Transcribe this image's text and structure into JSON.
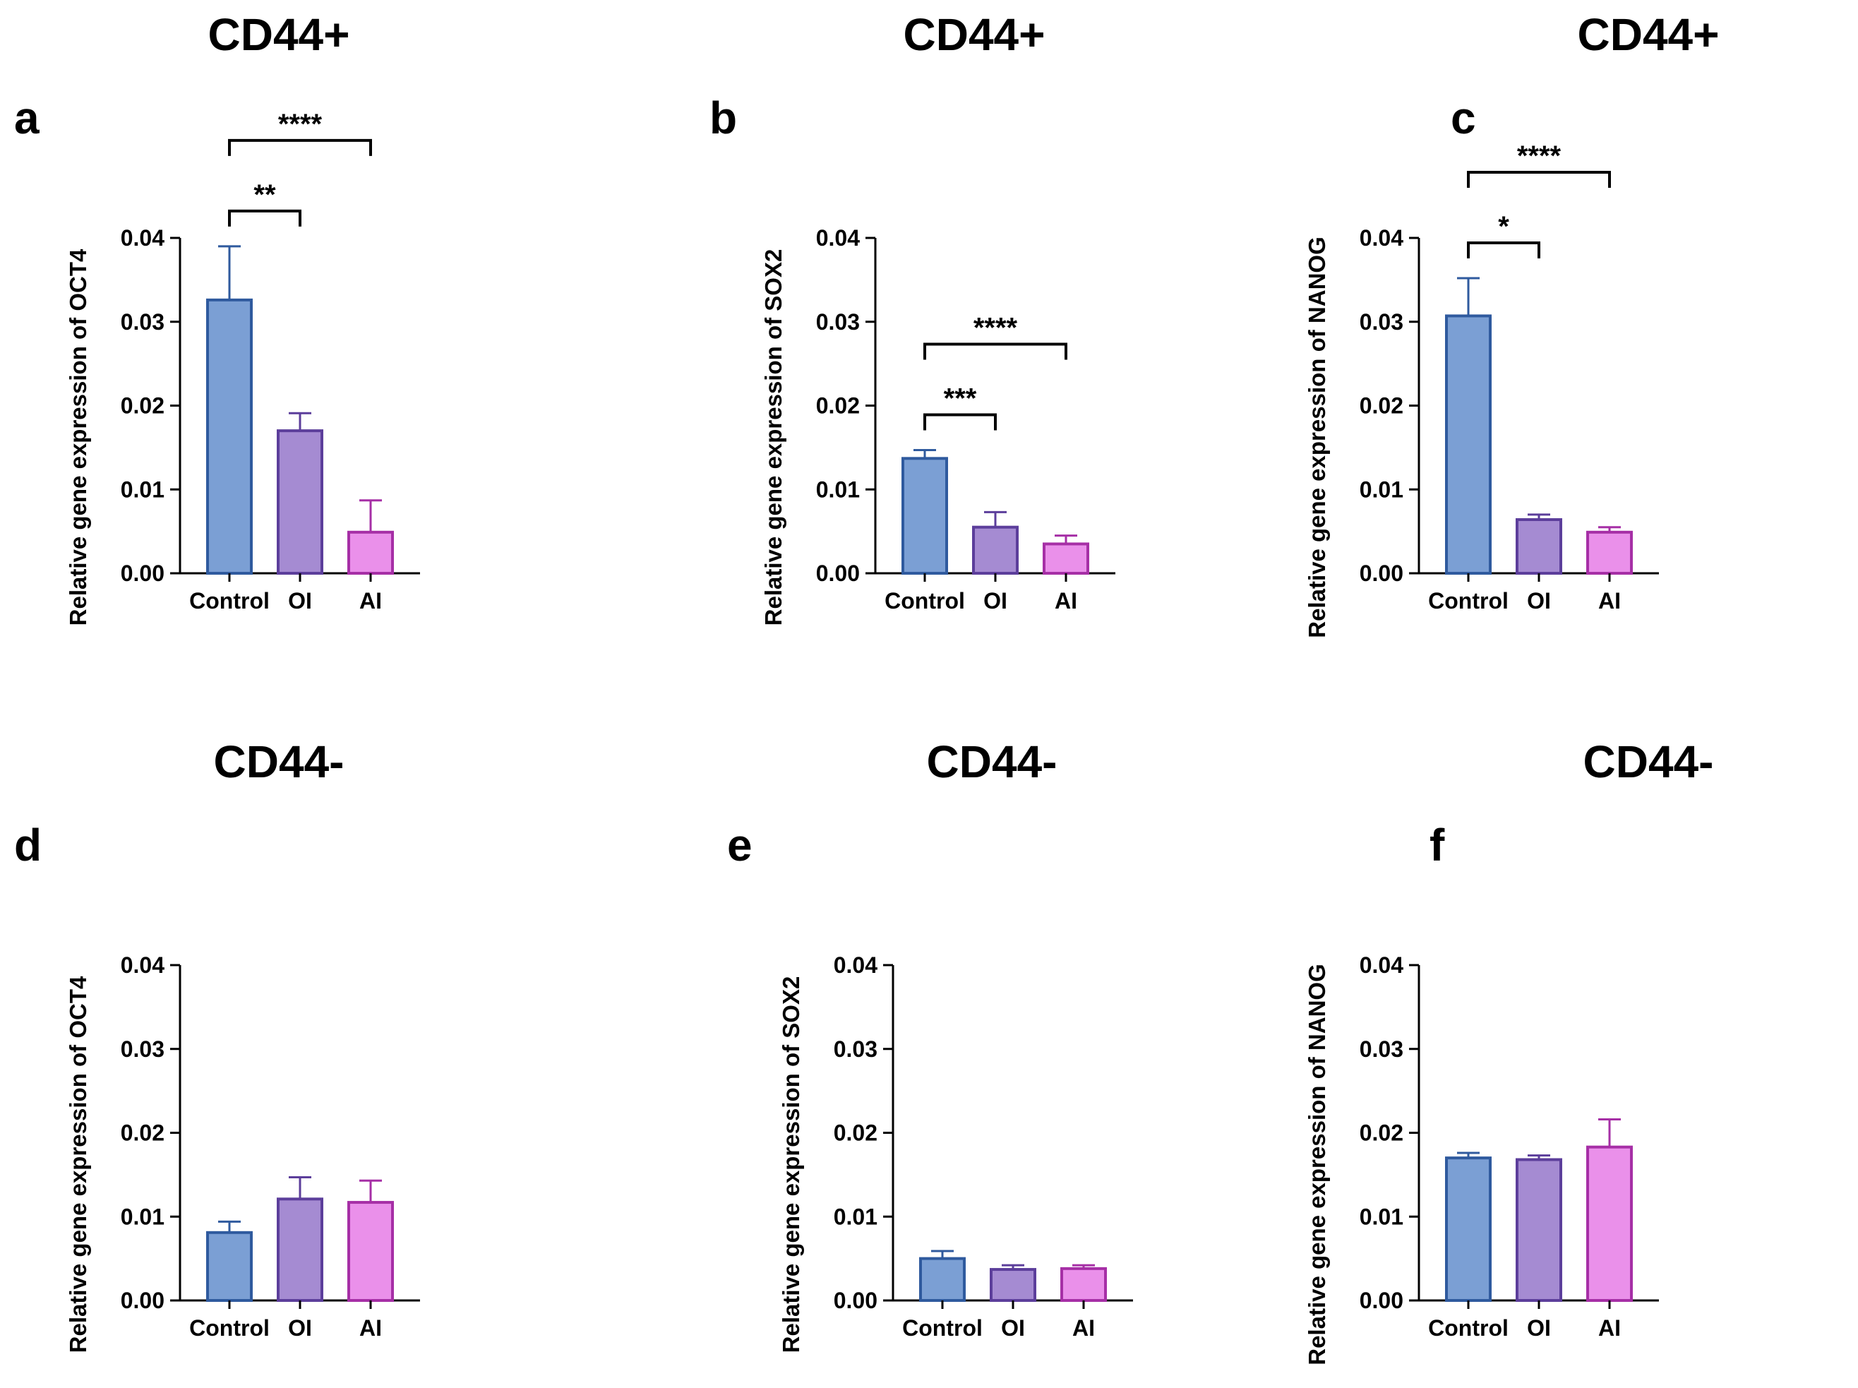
{
  "colors": {
    "Control": {
      "fill": "#7b9fd4",
      "stroke": "#2f5a9e"
    },
    "OI": {
      "fill": "#a58bd2",
      "stroke": "#5c3e9b"
    },
    "AI": {
      "fill": "#ea90ea",
      "stroke": "#a62fa6"
    }
  },
  "chart_data": [
    {
      "type": "bar",
      "panel": "a",
      "title": "CD44+",
      "ylabel": "Relative gene expression of OCT4",
      "categories": [
        "Control",
        "OI",
        "AI"
      ],
      "values": [
        0.0326,
        0.017,
        0.0049
      ],
      "errors": [
        0.0064,
        0.0021,
        0.0038
      ],
      "ylim": [
        0,
        0.04
      ],
      "yticks": [
        "0.00",
        "0.01",
        "0.02",
        "0.03",
        "0.04"
      ],
      "significance": [
        {
          "from": 0,
          "to": 1,
          "label": "**"
        },
        {
          "from": 0,
          "to": 2,
          "label": "****"
        }
      ]
    },
    {
      "type": "bar",
      "panel": "b",
      "title": "CD44+",
      "ylabel": "Relative gene expression of SOX2",
      "categories": [
        "Control",
        "OI",
        "AI"
      ],
      "values": [
        0.0137,
        0.0055,
        0.0035
      ],
      "errors": [
        0.001,
        0.0018,
        0.001
      ],
      "ylim": [
        0,
        0.04
      ],
      "yticks": [
        "0.00",
        "0.01",
        "0.02",
        "0.03",
        "0.04"
      ],
      "significance": [
        {
          "from": 0,
          "to": 1,
          "label": "***"
        },
        {
          "from": 0,
          "to": 2,
          "label": "****"
        }
      ]
    },
    {
      "type": "bar",
      "panel": "c",
      "title": "CD44+",
      "ylabel": "Relative gene expression of NANOG",
      "categories": [
        "Control",
        "OI",
        "AI"
      ],
      "values": [
        0.0307,
        0.0064,
        0.0049
      ],
      "errors": [
        0.0045,
        0.0006,
        0.0006
      ],
      "ylim": [
        0,
        0.04
      ],
      "yticks": [
        "0.00",
        "0.01",
        "0.02",
        "0.03",
        "0.04"
      ],
      "significance": [
        {
          "from": 0,
          "to": 1,
          "label": "*"
        },
        {
          "from": 0,
          "to": 2,
          "label": "****"
        }
      ]
    },
    {
      "type": "bar",
      "panel": "d",
      "title": "CD44-",
      "ylabel": "Relative gene expression of OCT4",
      "categories": [
        "Control",
        "OI",
        "AI"
      ],
      "values": [
        0.0081,
        0.0121,
        0.0117
      ],
      "errors": [
        0.0013,
        0.0026,
        0.0026
      ],
      "ylim": [
        0,
        0.04
      ],
      "yticks": [
        "0.00",
        "0.01",
        "0.02",
        "0.03",
        "0.04"
      ],
      "significance": []
    },
    {
      "type": "bar",
      "panel": "e",
      "title": "CD44-",
      "ylabel": "Relative gene expression of SOX2",
      "categories": [
        "Control",
        "OI",
        "AI"
      ],
      "values": [
        0.005,
        0.0037,
        0.0038
      ],
      "errors": [
        0.0009,
        0.0005,
        0.0004
      ],
      "ylim": [
        0,
        0.04
      ],
      "yticks": [
        "0.00",
        "0.01",
        "0.02",
        "0.03",
        "0.04"
      ],
      "significance": []
    },
    {
      "type": "bar",
      "panel": "f",
      "title": "CD44-",
      "ylabel": "Relative gene expression of NANOG",
      "categories": [
        "Control",
        "OI",
        "AI"
      ],
      "values": [
        0.017,
        0.0168,
        0.0183
      ],
      "errors": [
        0.0006,
        0.0005,
        0.0033
      ],
      "ylim": [
        0,
        0.04
      ],
      "yticks": [
        "0.00",
        "0.01",
        "0.02",
        "0.03",
        "0.04"
      ],
      "significance": []
    }
  ]
}
